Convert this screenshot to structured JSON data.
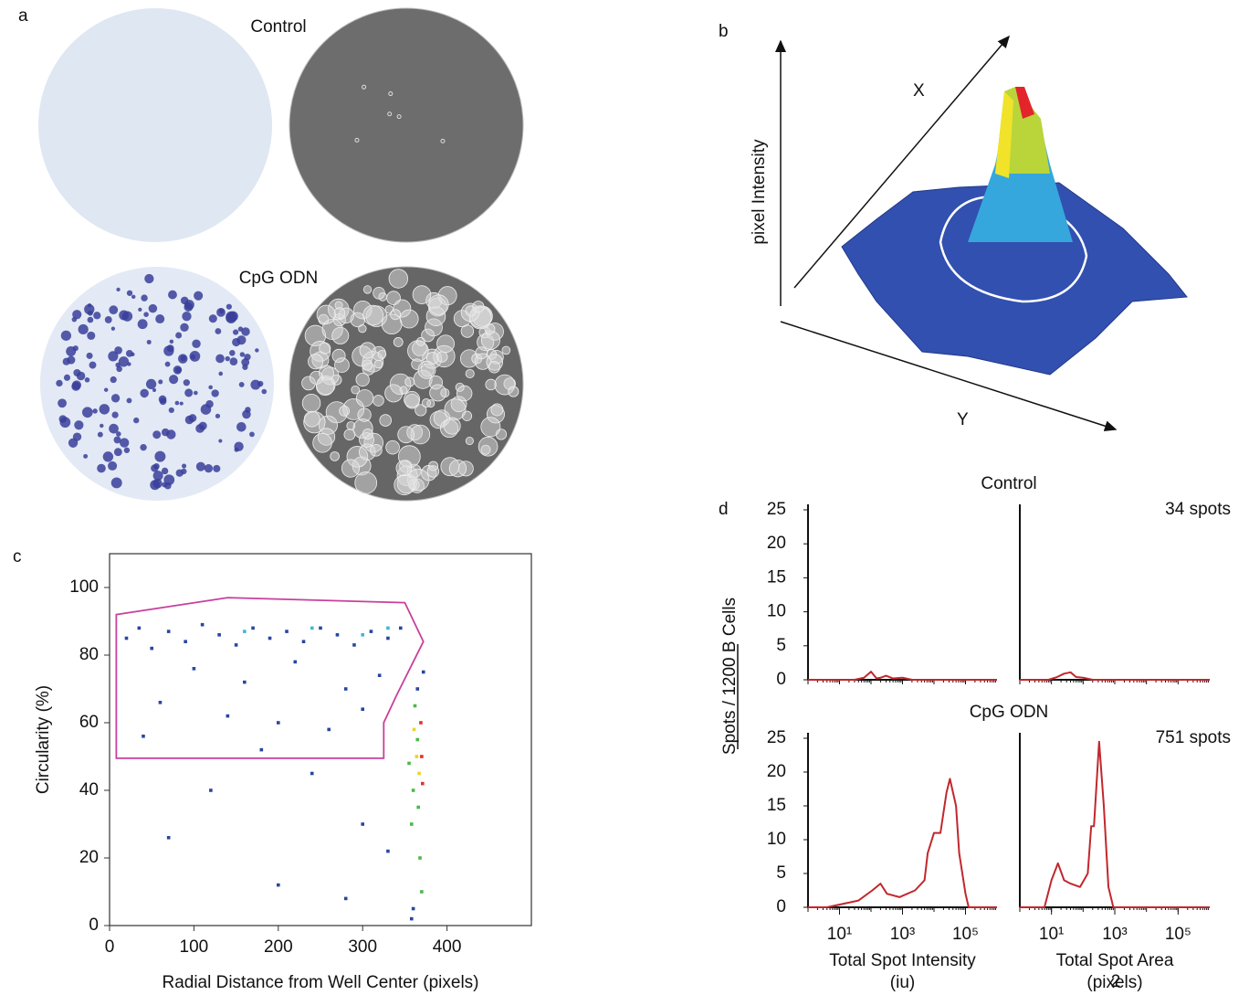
{
  "panel_labels": [
    "a",
    "b",
    "c",
    "d"
  ],
  "panel_a": {
    "top_label": "Control",
    "bottom_label": "CpG ODN"
  },
  "panel_b": {
    "x_label": "X",
    "y_label": "Y",
    "z_label": "pixel Intensity"
  },
  "page_number": "2",
  "chart_data": [
    {
      "type": "scatter",
      "xlabel": "Radial Distance from Well Center (pixels)",
      "ylabel": "Circularity (%)",
      "xlim": [
        0,
        500
      ],
      "ylim": [
        0,
        110
      ],
      "xticks": [
        0,
        100,
        200,
        300,
        400
      ],
      "yticks": [
        0,
        20,
        40,
        60,
        80,
        100
      ],
      "x": [
        20,
        35,
        50,
        70,
        90,
        110,
        130,
        150,
        170,
        190,
        210,
        230,
        250,
        270,
        290,
        310,
        330,
        345,
        100,
        160,
        220,
        280,
        320,
        60,
        140,
        200,
        260,
        300,
        40,
        180,
        240,
        120,
        300,
        70,
        330,
        200,
        280,
        240,
        300,
        160,
        330,
        360,
        365,
        358,
        368,
        362,
        370,
        355,
        366,
        364,
        367,
        361,
        370,
        371,
        369,
        360,
        365,
        372,
        358
      ],
      "values": [
        85,
        88,
        82,
        87,
        84,
        89,
        86,
        83,
        88,
        85,
        87,
        84,
        88,
        86,
        83,
        87,
        85,
        88,
        76,
        72,
        78,
        70,
        74,
        66,
        62,
        60,
        58,
        64,
        56,
        52,
        45,
        40,
        30,
        26,
        22,
        12,
        8,
        88,
        86,
        87,
        88,
        40,
        55,
        30,
        20,
        65,
        10,
        48,
        35,
        50,
        45,
        58,
        50,
        42,
        60,
        5,
        70,
        75,
        2
      ],
      "colors": [
        "#2846a0",
        "#2846a0",
        "#2846a0",
        "#2846a0",
        "#2846a0",
        "#2846a0",
        "#2846a0",
        "#2846a0",
        "#2846a0",
        "#2846a0",
        "#2846a0",
        "#2846a0",
        "#2846a0",
        "#2846a0",
        "#2846a0",
        "#2846a0",
        "#2846a0",
        "#2846a0",
        "#2846a0",
        "#2846a0",
        "#2846a0",
        "#2846a0",
        "#2846a0",
        "#2846a0",
        "#2846a0",
        "#2846a0",
        "#2846a0",
        "#2846a0",
        "#2846a0",
        "#2846a0",
        "#2846a0",
        "#2846a0",
        "#2846a0",
        "#2846a0",
        "#2846a0",
        "#2846a0",
        "#2846a0",
        "#3fb6d8",
        "#3fb6d8",
        "#3fb6d8",
        "#3fb6d8",
        "#4cb848",
        "#4cb848",
        "#4cb848",
        "#4cb848",
        "#4cb848",
        "#4cb848",
        "#4cb848",
        "#4cb848",
        "#e8d628",
        "#e8d628",
        "#e8d628",
        "#e3312a",
        "#e3312a",
        "#e3312a",
        "#2846a0",
        "#2846a0",
        "#2846a0",
        "#2846a0"
      ],
      "gate": {
        "color": "#c8409a",
        "x": [
          8,
          140,
          350,
          372,
          340,
          325,
          325,
          8
        ],
        "y": [
          92,
          97,
          95.5,
          84,
          68,
          60,
          49.5,
          49.5
        ]
      }
    },
    {
      "type": "line",
      "title": "Control",
      "ylabel": "Spots / 1200 B Cells",
      "color": "#c0282d",
      "xscale": "log",
      "xlim": [
        1,
        1000000
      ],
      "ylim": [
        0,
        25
      ],
      "yticks": [
        0,
        5,
        10,
        15,
        20,
        25
      ],
      "x": [
        1,
        30,
        60,
        100,
        150,
        200,
        300,
        500,
        1000,
        2000,
        1000000
      ],
      "values": [
        0,
        0,
        0.3,
        1.2,
        0.2,
        0.3,
        0.6,
        0.2,
        0.3,
        0,
        0
      ]
    },
    {
      "type": "line",
      "annotation": "34 spots",
      "color": "#c0282d",
      "xscale": "log",
      "xlim": [
        1,
        1000000
      ],
      "ylim": [
        0,
        25
      ],
      "x": [
        1,
        8,
        15,
        25,
        40,
        60,
        100,
        200,
        1000000
      ],
      "values": [
        0,
        0,
        0.4,
        0.9,
        1.1,
        0.4,
        0.3,
        0,
        0
      ]
    },
    {
      "type": "line",
      "title": "CpG ODN",
      "xlabel": [
        "Total Spot Intensity",
        "(iu)"
      ],
      "color": "#c0282d",
      "xscale": "log",
      "xlim": [
        1,
        1000000
      ],
      "ylim": [
        0,
        25
      ],
      "yticks": [
        0,
        5,
        10,
        15,
        20,
        25
      ],
      "xticks": [
        {
          "value": 10,
          "label": "10¹"
        },
        {
          "value": 1000,
          "label": "10³"
        },
        {
          "value": 100000,
          "label": "10⁵"
        }
      ],
      "x": [
        1,
        4,
        40,
        110,
        200,
        320,
        800,
        2500,
        5000,
        6300,
        10000,
        16000,
        25000,
        32000,
        50000,
        63000,
        100000,
        126000,
        1000000
      ],
      "values": [
        0,
        0,
        1,
        2.5,
        3.5,
        2,
        1.5,
        2.5,
        4,
        8,
        11,
        11,
        17,
        19,
        15,
        8,
        2,
        0,
        0
      ]
    },
    {
      "type": "line",
      "annotation": "751 spots",
      "xlabel": [
        "Total Spot Area",
        "(pixels)"
      ],
      "color": "#c0282d",
      "xscale": "log",
      "xlim": [
        1,
        1000000
      ],
      "ylim": [
        0,
        25
      ],
      "xticks": [
        {
          "value": 10,
          "label": "10¹"
        },
        {
          "value": 1000,
          "label": "10³"
        },
        {
          "value": 100000,
          "label": "10⁵"
        }
      ],
      "x": [
        1,
        6,
        10,
        16,
        25,
        40,
        80,
        140,
        180,
        220,
        320,
        450,
        630,
        900,
        1000000
      ],
      "values": [
        0,
        0,
        4,
        6.5,
        4,
        3.5,
        3,
        5,
        12,
        12,
        24.5,
        15,
        3,
        0,
        0
      ]
    }
  ]
}
